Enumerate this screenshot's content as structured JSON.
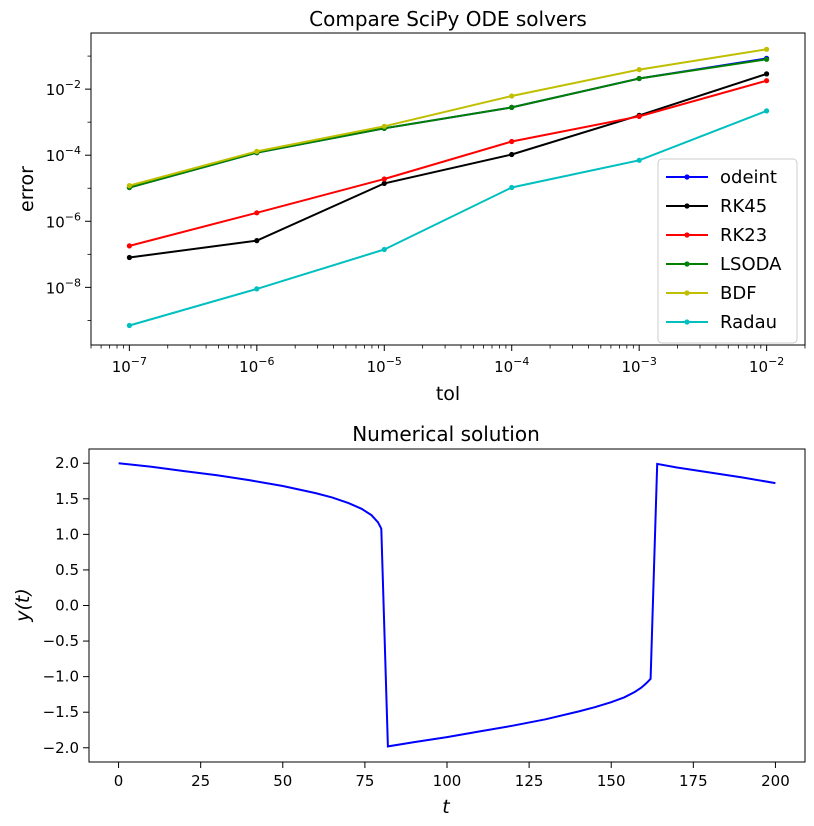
{
  "chart_data": [
    {
      "type": "line",
      "title": "Compare SciPy ODE solvers",
      "xlabel": "tol",
      "ylabel": "error",
      "xscale": "log",
      "yscale": "log",
      "xlim": [
        5e-08,
        0.02
      ],
      "ylim": [
        1.8e-10,
        0.5
      ],
      "x_ticks": [
        {
          "value": 1e-07,
          "base": "10",
          "exp": "−7"
        },
        {
          "value": 1e-06,
          "base": "10",
          "exp": "−6"
        },
        {
          "value": 1e-05,
          "base": "10",
          "exp": "−5"
        },
        {
          "value": 0.0001,
          "base": "10",
          "exp": "−4"
        },
        {
          "value": 0.001,
          "base": "10",
          "exp": "−3"
        },
        {
          "value": 0.01,
          "base": "10",
          "exp": "−2"
        }
      ],
      "y_ticks": [
        {
          "value": 1e-08,
          "base": "10",
          "exp": "−8"
        },
        {
          "value": 1e-06,
          "base": "10",
          "exp": "−6"
        },
        {
          "value": 0.0001,
          "base": "10",
          "exp": "−4"
        },
        {
          "value": 0.01,
          "base": "10",
          "exp": "−2"
        }
      ],
      "grid": false,
      "legend_position": "lower-right",
      "x": [
        1e-07,
        1e-06,
        1e-05,
        0.0001,
        0.001,
        0.01
      ],
      "series": [
        {
          "name": "odeint",
          "color": "#0000ff",
          "values": [
            1.05e-05,
            0.00012,
            0.00065,
            0.0028,
            0.021,
            0.085
          ]
        },
        {
          "name": "RK45",
          "color": "#000000",
          "values": [
            8e-08,
            2.6e-07,
            1.4e-05,
            0.000105,
            0.0016,
            0.029
          ]
        },
        {
          "name": "RK23",
          "color": "#ff0000",
          "values": [
            1.8e-07,
            1.8e-06,
            1.9e-05,
            0.00026,
            0.0015,
            0.018
          ]
        },
        {
          "name": "LSODA",
          "color": "#008000",
          "values": [
            1.05e-05,
            0.00012,
            0.00065,
            0.0028,
            0.021,
            0.08
          ]
        },
        {
          "name": "BDF",
          "color": "#bfbf00",
          "values": [
            1.2e-05,
            0.00013,
            0.00075,
            0.0062,
            0.039,
            0.16
          ]
        },
        {
          "name": "Radau",
          "color": "#00bfbf",
          "values": [
            7e-10,
            9e-09,
            1.4e-07,
            1.05e-05,
            7e-05,
            0.0022
          ]
        }
      ]
    },
    {
      "type": "line",
      "title": "Numerical solution",
      "xlabel": "t",
      "ylabel": "y(t)",
      "xlim": [
        -9,
        209
      ],
      "ylim": [
        -2.2,
        2.2
      ],
      "x_ticks": [
        "0",
        "25",
        "50",
        "75",
        "100",
        "125",
        "150",
        "175",
        "200"
      ],
      "y_ticks": [
        "−2.0",
        "−1.5",
        "−1.0",
        "−0.5",
        "0.0",
        "0.5",
        "1.0",
        "1.5",
        "2.0"
      ],
      "grid": false,
      "series": [
        {
          "color": "#0000ff",
          "x": [
            0,
            10,
            20,
            30,
            40,
            50,
            60,
            65,
            70,
            74,
            77,
            79,
            80,
            82,
            90,
            100,
            110,
            120,
            130,
            140,
            145,
            150,
            154,
            157,
            159,
            160,
            161,
            162,
            164,
            170,
            180,
            190,
            200
          ],
          "values": [
            2.0,
            1.95,
            1.89,
            1.83,
            1.76,
            1.68,
            1.58,
            1.52,
            1.44,
            1.36,
            1.27,
            1.17,
            1.08,
            -1.98,
            -1.92,
            -1.85,
            -1.77,
            -1.69,
            -1.6,
            -1.49,
            -1.43,
            -1.36,
            -1.29,
            -1.22,
            -1.16,
            -1.12,
            -1.08,
            -1.03,
            1.99,
            1.94,
            1.87,
            1.8,
            1.72
          ]
        }
      ]
    }
  ]
}
